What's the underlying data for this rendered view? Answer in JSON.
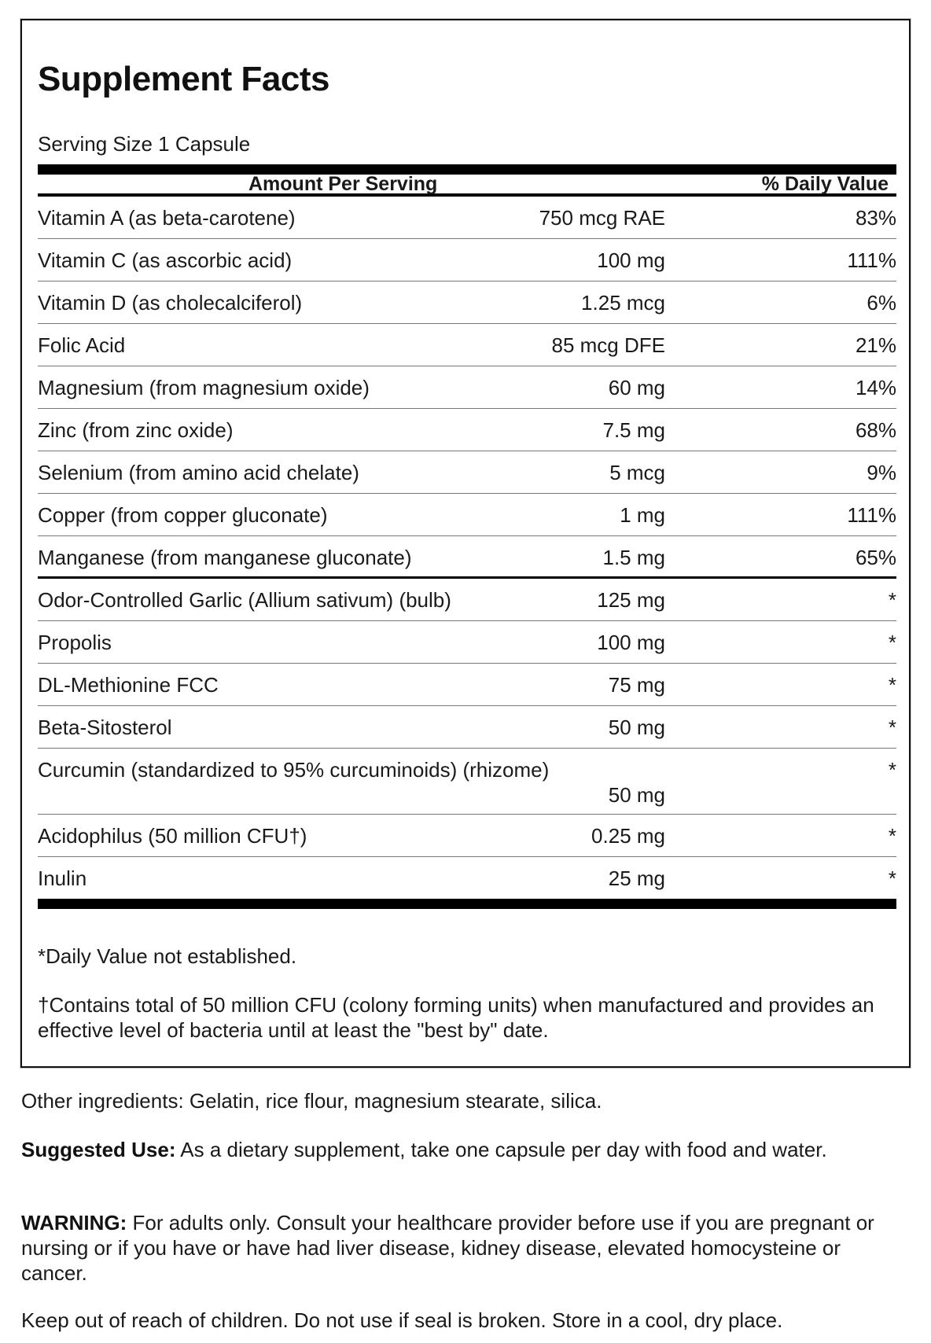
{
  "title": "Supplement Facts",
  "serving_size": "Serving Size 1 Capsule",
  "header": {
    "amount": "Amount Per Serving",
    "daily_value": "% Daily Value"
  },
  "nutrients": [
    {
      "name": "Vitamin A (as beta-carotene)",
      "amount": "750 mcg RAE",
      "dv": "83%"
    },
    {
      "name": "Vitamin C (as ascorbic acid)",
      "amount": "100 mg",
      "dv": "111%"
    },
    {
      "name": "Vitamin D (as cholecalciferol)",
      "amount": "1.25 mcg",
      "dv": "6%"
    },
    {
      "name": "Folic Acid",
      "amount": "85 mcg DFE",
      "dv": "21%"
    },
    {
      "name": "Magnesium (from magnesium oxide)",
      "amount": "60 mg",
      "dv": "14%"
    },
    {
      "name": "Zinc (from zinc oxide)",
      "amount": "7.5 mg",
      "dv": "68%"
    },
    {
      "name": "Selenium (from amino acid chelate)",
      "amount": "5 mcg",
      "dv": "9%"
    },
    {
      "name": "Copper (from copper gluconate)",
      "amount": "1 mg",
      "dv": "111%"
    },
    {
      "name": "Manganese (from manganese gluconate)",
      "amount": "1.5 mg",
      "dv": "65%"
    }
  ],
  "other_actives": [
    {
      "name": "Odor-Controlled Garlic (Allium sativum) (bulb)",
      "amount": "125 mg",
      "dv": "*"
    },
    {
      "name": "Propolis",
      "amount": "100 mg",
      "dv": "*"
    },
    {
      "name": "DL-Methionine FCC",
      "amount": "75 mg",
      "dv": "*"
    },
    {
      "name": "Beta-Sitosterol",
      "amount": "50 mg",
      "dv": "*"
    },
    {
      "name": "Curcumin (standardized to 95% curcuminoids) (rhizome)",
      "amount": "50 mg",
      "dv": "*"
    },
    {
      "name": "Acidophilus (50 million CFU†)",
      "amount": "0.25 mg",
      "dv": "*"
    },
    {
      "name": "Inulin",
      "amount": "25 mg",
      "dv": "*"
    }
  ],
  "footnotes": {
    "dv_not_established": "*Daily Value not established.",
    "cfu": "†Contains total of 50 million CFU (colony forming units) when manufactured and provides an effective level of bacteria until at least the \"best by\" date."
  },
  "other_ingredients": "Other ingredients: Gelatin, rice flour, magnesium stearate, silica.",
  "suggested_use": {
    "label": "Suggested Use:",
    "text": " As a dietary supplement, take one capsule per day with food and water."
  },
  "warning": {
    "label": "WARNING:",
    "text": " For adults only. Consult your healthcare provider before use if you are pregnant or nursing or if you have or have had liver disease, kidney disease, elevated homocysteine or cancer."
  },
  "storage": "Keep out of reach of children. Do not use if seal is broken. Store in a cool, dry place."
}
